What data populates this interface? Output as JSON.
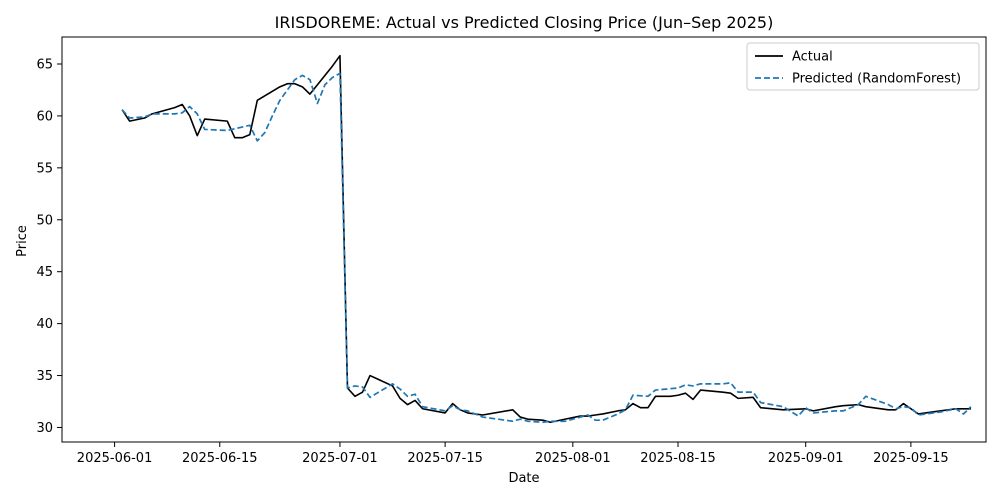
{
  "chart_data": {
    "type": "line",
    "title": "IRISDOREME: Actual vs Predicted Closing Price (Jun–Sep 2025)",
    "xlabel": "Date",
    "ylabel": "Price",
    "xlim": [
      "2025-05-25",
      "2025-09-25"
    ],
    "ylim": [
      28.6,
      67.6
    ],
    "x_ticks": [
      "2025-06-01",
      "2025-06-15",
      "2025-07-01",
      "2025-07-15",
      "2025-08-01",
      "2025-08-15",
      "2025-09-01",
      "2025-09-15"
    ],
    "y_ticks": [
      30,
      35,
      40,
      45,
      50,
      55,
      60,
      65
    ],
    "legend_position": "upper right",
    "grid": false,
    "series": [
      {
        "name": "Actual",
        "color": "#000000",
        "style": "solid",
        "points": [
          [
            "2025-06-02",
            60.6
          ],
          [
            "2025-06-03",
            59.5
          ],
          [
            "2025-06-05",
            59.8
          ],
          [
            "2025-06-06",
            60.2
          ],
          [
            "2025-06-09",
            60.8
          ],
          [
            "2025-06-10",
            61.1
          ],
          [
            "2025-06-11",
            60.0
          ],
          [
            "2025-06-12",
            58.1
          ],
          [
            "2025-06-13",
            59.7
          ],
          [
            "2025-06-16",
            59.5
          ],
          [
            "2025-06-17",
            57.9
          ],
          [
            "2025-06-18",
            57.9
          ],
          [
            "2025-06-19",
            58.2
          ],
          [
            "2025-06-20",
            61.5
          ],
          [
            "2025-06-23",
            62.8
          ],
          [
            "2025-06-24",
            63.1
          ],
          [
            "2025-06-25",
            63.1
          ],
          [
            "2025-06-26",
            62.8
          ],
          [
            "2025-06-27",
            62.1
          ],
          [
            "2025-06-30",
            64.8
          ],
          [
            "2025-07-01",
            65.8
          ],
          [
            "2025-07-02",
            33.8
          ],
          [
            "2025-07-03",
            33.0
          ],
          [
            "2025-07-04",
            33.4
          ],
          [
            "2025-07-05",
            35.0
          ],
          [
            "2025-07-08",
            34.0
          ],
          [
            "2025-07-09",
            32.8
          ],
          [
            "2025-07-10",
            32.2
          ],
          [
            "2025-07-11",
            32.6
          ],
          [
            "2025-07-12",
            31.8
          ],
          [
            "2025-07-15",
            31.4
          ],
          [
            "2025-07-16",
            32.3
          ],
          [
            "2025-07-17",
            31.7
          ],
          [
            "2025-07-18",
            31.4
          ],
          [
            "2025-07-20",
            31.2
          ],
          [
            "2025-07-24",
            31.7
          ],
          [
            "2025-07-25",
            31.0
          ],
          [
            "2025-07-26",
            30.8
          ],
          [
            "2025-07-28",
            30.7
          ],
          [
            "2025-07-29",
            30.5
          ],
          [
            "2025-07-31",
            30.8
          ],
          [
            "2025-08-02",
            31.1
          ],
          [
            "2025-08-03",
            31.1
          ],
          [
            "2025-08-04",
            31.2
          ],
          [
            "2025-08-05",
            31.3
          ],
          [
            "2025-08-07",
            31.6
          ],
          [
            "2025-08-08",
            31.7
          ],
          [
            "2025-08-09",
            32.3
          ],
          [
            "2025-08-10",
            31.9
          ],
          [
            "2025-08-11",
            31.9
          ],
          [
            "2025-08-12",
            33.0
          ],
          [
            "2025-08-14",
            33.0
          ],
          [
            "2025-08-15",
            33.1
          ],
          [
            "2025-08-16",
            33.3
          ],
          [
            "2025-08-17",
            32.7
          ],
          [
            "2025-08-18",
            33.6
          ],
          [
            "2025-08-21",
            33.4
          ],
          [
            "2025-08-22",
            33.3
          ],
          [
            "2025-08-23",
            32.8
          ],
          [
            "2025-08-25",
            32.9
          ],
          [
            "2025-08-26",
            31.9
          ],
          [
            "2025-08-29",
            31.7
          ],
          [
            "2025-09-01",
            31.8
          ],
          [
            "2025-09-02",
            31.6
          ],
          [
            "2025-09-05",
            32.0
          ],
          [
            "2025-09-06",
            32.1
          ],
          [
            "2025-09-08",
            32.2
          ],
          [
            "2025-09-09",
            32.0
          ],
          [
            "2025-09-12",
            31.7
          ],
          [
            "2025-09-13",
            31.7
          ],
          [
            "2025-09-14",
            32.3
          ],
          [
            "2025-09-15",
            31.8
          ],
          [
            "2025-09-16",
            31.3
          ],
          [
            "2025-09-19",
            31.6
          ],
          [
            "2025-09-21",
            31.8
          ],
          [
            "2025-09-23",
            31.8
          ]
        ]
      },
      {
        "name": "Predicted (RandomForest)",
        "color": "#1f77b4",
        "style": "dashed",
        "points": [
          [
            "2025-06-02",
            60.6
          ],
          [
            "2025-06-03",
            59.8
          ],
          [
            "2025-06-05",
            59.9
          ],
          [
            "2025-06-06",
            60.2
          ],
          [
            "2025-06-09",
            60.2
          ],
          [
            "2025-06-10",
            60.3
          ],
          [
            "2025-06-11",
            60.9
          ],
          [
            "2025-06-12",
            60.2
          ],
          [
            "2025-06-13",
            58.7
          ],
          [
            "2025-06-16",
            58.6
          ],
          [
            "2025-06-19",
            59.1
          ],
          [
            "2025-06-20",
            57.6
          ],
          [
            "2025-06-21",
            58.4
          ],
          [
            "2025-06-22",
            60.0
          ],
          [
            "2025-06-23",
            61.5
          ],
          [
            "2025-06-25",
            63.5
          ],
          [
            "2025-06-26",
            63.9
          ],
          [
            "2025-06-27",
            63.5
          ],
          [
            "2025-06-28",
            61.2
          ],
          [
            "2025-06-29",
            63.0
          ],
          [
            "2025-06-30",
            63.7
          ],
          [
            "2025-07-01",
            64.1
          ],
          [
            "2025-07-02",
            33.8
          ],
          [
            "2025-07-03",
            34.0
          ],
          [
            "2025-07-04",
            33.9
          ],
          [
            "2025-07-05",
            32.9
          ],
          [
            "2025-07-08",
            34.2
          ],
          [
            "2025-07-09",
            33.7
          ],
          [
            "2025-07-10",
            33.0
          ],
          [
            "2025-07-11",
            33.2
          ],
          [
            "2025-07-12",
            32.0
          ],
          [
            "2025-07-15",
            31.6
          ],
          [
            "2025-07-16",
            32.1
          ],
          [
            "2025-07-17",
            31.7
          ],
          [
            "2025-07-18",
            31.6
          ],
          [
            "2025-07-20",
            31.0
          ],
          [
            "2025-07-24",
            30.6
          ],
          [
            "2025-07-25",
            30.8
          ],
          [
            "2025-07-26",
            30.6
          ],
          [
            "2025-07-28",
            30.5
          ],
          [
            "2025-07-29",
            30.6
          ],
          [
            "2025-07-31",
            30.6
          ],
          [
            "2025-08-02",
            31.0
          ],
          [
            "2025-08-03",
            31.2
          ],
          [
            "2025-08-04",
            30.7
          ],
          [
            "2025-08-05",
            30.7
          ],
          [
            "2025-08-07",
            31.3
          ],
          [
            "2025-08-08",
            31.7
          ],
          [
            "2025-08-09",
            33.1
          ],
          [
            "2025-08-11",
            33.0
          ],
          [
            "2025-08-12",
            33.6
          ],
          [
            "2025-08-15",
            33.8
          ],
          [
            "2025-08-16",
            34.1
          ],
          [
            "2025-08-17",
            34.0
          ],
          [
            "2025-08-18",
            34.2
          ],
          [
            "2025-08-21",
            34.2
          ],
          [
            "2025-08-22",
            34.3
          ],
          [
            "2025-08-23",
            33.4
          ],
          [
            "2025-08-25",
            33.4
          ],
          [
            "2025-08-26",
            32.4
          ],
          [
            "2025-08-29",
            32.0
          ],
          [
            "2025-08-31",
            31.1
          ],
          [
            "2025-09-01",
            31.9
          ],
          [
            "2025-09-02",
            31.4
          ],
          [
            "2025-09-05",
            31.6
          ],
          [
            "2025-09-06",
            31.6
          ],
          [
            "2025-09-08",
            32.2
          ],
          [
            "2025-09-09",
            33.0
          ],
          [
            "2025-09-12",
            32.2
          ],
          [
            "2025-09-13",
            31.8
          ],
          [
            "2025-09-14",
            32.0
          ],
          [
            "2025-09-15",
            31.9
          ],
          [
            "2025-09-16",
            31.2
          ],
          [
            "2025-09-19",
            31.5
          ],
          [
            "2025-09-21",
            31.8
          ],
          [
            "2025-09-22",
            31.3
          ],
          [
            "2025-09-23",
            32.0
          ]
        ]
      }
    ]
  }
}
